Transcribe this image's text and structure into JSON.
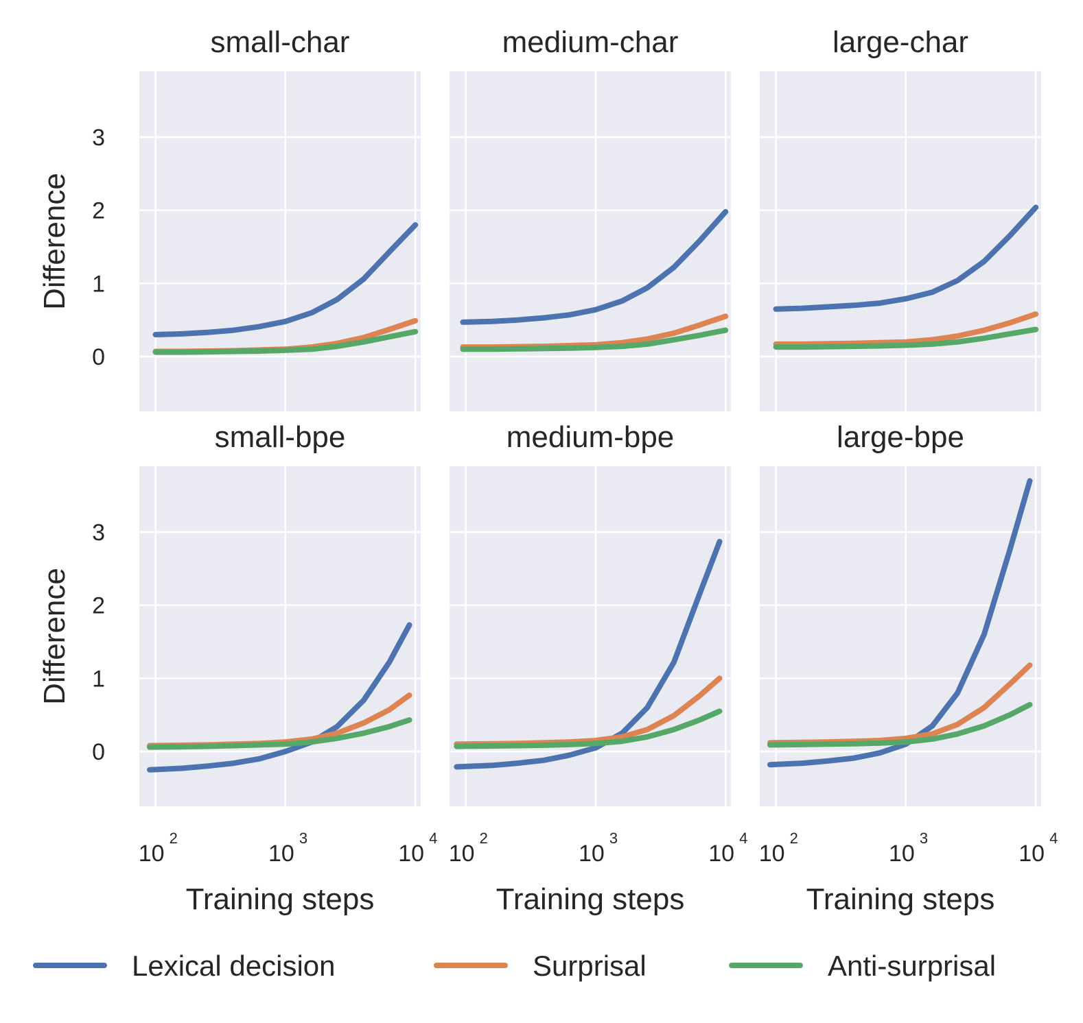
{
  "chart_data": {
    "type": "line",
    "figure": "grid",
    "x_scale": "log",
    "xlabel": "Training steps",
    "ylabel": "Difference",
    "ylim": [
      -0.75,
      3.9
    ],
    "xlim": [
      75,
      11000
    ],
    "yticks": [
      0,
      1,
      2,
      3
    ],
    "xticks": [
      {
        "value": 100,
        "base": "10",
        "exp": "2"
      },
      {
        "value": 1000,
        "base": "10",
        "exp": "3"
      },
      {
        "value": 10000,
        "base": "10",
        "exp": "4"
      }
    ],
    "colors": {
      "Lexical decision": "#4c72b0",
      "Surprisal": "#dd8452",
      "Anti-surprisal": "#55a868",
      "plot_bg": "#eaeaf2",
      "grid": "#ffffff"
    },
    "legend": {
      "placement": "bottom",
      "entries": [
        {
          "label": "Lexical decision",
          "color": "#4c72b0"
        },
        {
          "label": "Surprisal",
          "color": "#dd8452"
        },
        {
          "label": "Anti-surprisal",
          "color": "#55a868"
        }
      ]
    },
    "panels": [
      {
        "title": "small-char",
        "x": [
          100,
          160,
          250,
          400,
          630,
          1000,
          1600,
          2500,
          4000,
          6300,
          10000
        ],
        "series": [
          {
            "name": "Lexical decision",
            "values": [
              0.3,
              0.31,
              0.33,
              0.36,
              0.41,
              0.48,
              0.6,
              0.78,
              1.06,
              1.43,
              1.8
            ]
          },
          {
            "name": "Surprisal",
            "values": [
              0.07,
              0.07,
              0.075,
              0.08,
              0.09,
              0.1,
              0.13,
              0.18,
              0.26,
              0.37,
              0.49
            ]
          },
          {
            "name": "Anti-surprisal",
            "values": [
              0.06,
              0.06,
              0.065,
              0.07,
              0.075,
              0.085,
              0.1,
              0.14,
              0.2,
              0.27,
              0.34
            ]
          }
        ]
      },
      {
        "title": "medium-char",
        "x": [
          95,
          160,
          250,
          400,
          630,
          1000,
          1600,
          2500,
          4000,
          6300,
          10000
        ],
        "series": [
          {
            "name": "Lexical decision",
            "values": [
              0.47,
              0.48,
              0.5,
              0.53,
              0.57,
              0.64,
              0.76,
              0.94,
              1.22,
              1.58,
              1.98
            ]
          },
          {
            "name": "Surprisal",
            "values": [
              0.13,
              0.13,
              0.135,
              0.14,
              0.15,
              0.16,
              0.19,
              0.24,
              0.32,
              0.43,
              0.55
            ]
          },
          {
            "name": "Anti-surprisal",
            "values": [
              0.1,
              0.1,
              0.105,
              0.11,
              0.115,
              0.125,
              0.14,
              0.17,
              0.23,
              0.29,
              0.36
            ]
          }
        ]
      },
      {
        "title": "large-char",
        "x": [
          100,
          160,
          250,
          400,
          630,
          1000,
          1600,
          2500,
          4000,
          6300,
          10000
        ],
        "series": [
          {
            "name": "Lexical decision",
            "values": [
              0.65,
              0.66,
              0.68,
              0.7,
              0.73,
              0.79,
              0.88,
              1.04,
              1.3,
              1.65,
              2.04
            ]
          },
          {
            "name": "Surprisal",
            "values": [
              0.17,
              0.17,
              0.175,
              0.18,
              0.19,
              0.2,
              0.23,
              0.28,
              0.36,
              0.46,
              0.58
            ]
          },
          {
            "name": "Anti-surprisal",
            "values": [
              0.13,
              0.13,
              0.135,
              0.14,
              0.145,
              0.155,
              0.17,
              0.2,
              0.25,
              0.31,
              0.37
            ]
          }
        ]
      },
      {
        "title": "small-bpe",
        "x": [
          90,
          160,
          250,
          400,
          630,
          1000,
          1600,
          2500,
          4000,
          6300,
          9000
        ],
        "series": [
          {
            "name": "Lexical decision",
            "values": [
              -0.25,
              -0.23,
              -0.2,
              -0.16,
              -0.1,
              0.0,
              0.13,
              0.34,
              0.7,
              1.22,
              1.73
            ]
          },
          {
            "name": "Surprisal",
            "values": [
              0.08,
              0.085,
              0.09,
              0.1,
              0.11,
              0.13,
              0.17,
              0.25,
              0.39,
              0.57,
              0.77
            ]
          },
          {
            "name": "Anti-surprisal",
            "values": [
              0.06,
              0.065,
              0.07,
              0.08,
              0.09,
              0.1,
              0.13,
              0.18,
              0.25,
              0.34,
              0.43
            ]
          }
        ]
      },
      {
        "title": "medium-bpe",
        "x": [
          85,
          160,
          250,
          400,
          630,
          1000,
          1600,
          2500,
          4000,
          6300,
          9000
        ],
        "series": [
          {
            "name": "Lexical decision",
            "values": [
              -0.21,
              -0.19,
              -0.16,
              -0.12,
              -0.05,
              0.05,
              0.25,
              0.6,
              1.22,
              2.15,
              2.87
            ]
          },
          {
            "name": "Surprisal",
            "values": [
              0.1,
              0.105,
              0.11,
              0.12,
              0.13,
              0.15,
              0.2,
              0.3,
              0.49,
              0.76,
              1.0
            ]
          },
          {
            "name": "Anti-surprisal",
            "values": [
              0.07,
              0.075,
              0.08,
              0.085,
              0.095,
              0.11,
              0.14,
              0.2,
              0.3,
              0.43,
              0.55
            ]
          }
        ]
      },
      {
        "title": "large-bpe",
        "x": [
          90,
          160,
          250,
          400,
          630,
          1000,
          1600,
          2500,
          4000,
          6300,
          9000
        ],
        "series": [
          {
            "name": "Lexical decision",
            "values": [
              -0.18,
              -0.16,
              -0.13,
              -0.09,
              -0.02,
              0.1,
              0.35,
              0.8,
              1.6,
              2.75,
              3.7
            ]
          },
          {
            "name": "Surprisal",
            "values": [
              0.12,
              0.125,
              0.13,
              0.14,
              0.15,
              0.18,
              0.24,
              0.37,
              0.6,
              0.92,
              1.18
            ]
          },
          {
            "name": "Anti-surprisal",
            "values": [
              0.09,
              0.095,
              0.1,
              0.105,
              0.115,
              0.13,
              0.17,
              0.24,
              0.35,
              0.5,
              0.64
            ]
          }
        ]
      }
    ]
  }
}
